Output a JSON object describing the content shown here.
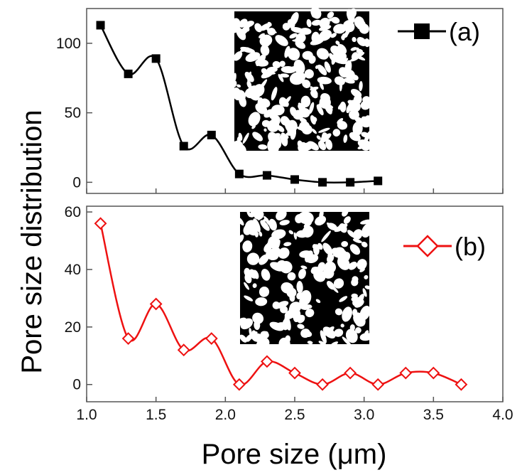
{
  "chart_data": [
    {
      "type": "line",
      "panel": "top",
      "legend": "(a)",
      "series": [
        {
          "name": "(a)",
          "color": "#000000",
          "marker": "filled-square",
          "x": [
            1.1,
            1.3,
            1.5,
            1.7,
            1.9,
            2.1,
            2.3,
            2.5,
            2.7,
            2.9,
            3.1
          ],
          "values": [
            113,
            78,
            89,
            26,
            34,
            6,
            5,
            2,
            0,
            0,
            1
          ]
        }
      ],
      "xlim": [
        1.0,
        4.0
      ],
      "ylim": [
        -8,
        125
      ],
      "yticks": [
        "0",
        "50",
        "100"
      ],
      "inset": "binary-pore-image"
    },
    {
      "type": "line",
      "panel": "bottom",
      "legend": "(b)",
      "series": [
        {
          "name": "(b)",
          "color": "#ee1111",
          "marker": "open-diamond",
          "x": [
            1.1,
            1.3,
            1.5,
            1.7,
            1.9,
            2.1,
            2.3,
            2.5,
            2.7,
            2.9,
            3.1,
            3.3,
            3.5,
            3.7
          ],
          "values": [
            56,
            16,
            28,
            12,
            16,
            0,
            8,
            4,
            0,
            4,
            0,
            4,
            4,
            0
          ]
        }
      ],
      "xlim": [
        1.0,
        4.0
      ],
      "ylim": [
        -6,
        62
      ],
      "yticks": [
        "0",
        "20",
        "40",
        "60"
      ],
      "xticks": [
        "1.0",
        "1.5",
        "2.0",
        "2.5",
        "3.0",
        "3.5",
        "4.0"
      ],
      "inset": "binary-pore-image"
    }
  ],
  "labels": {
    "ylabel": "Pore size distribution",
    "xlabel": "Pore size (μm)",
    "legend_a": "(a)",
    "legend_b": "(b)"
  }
}
